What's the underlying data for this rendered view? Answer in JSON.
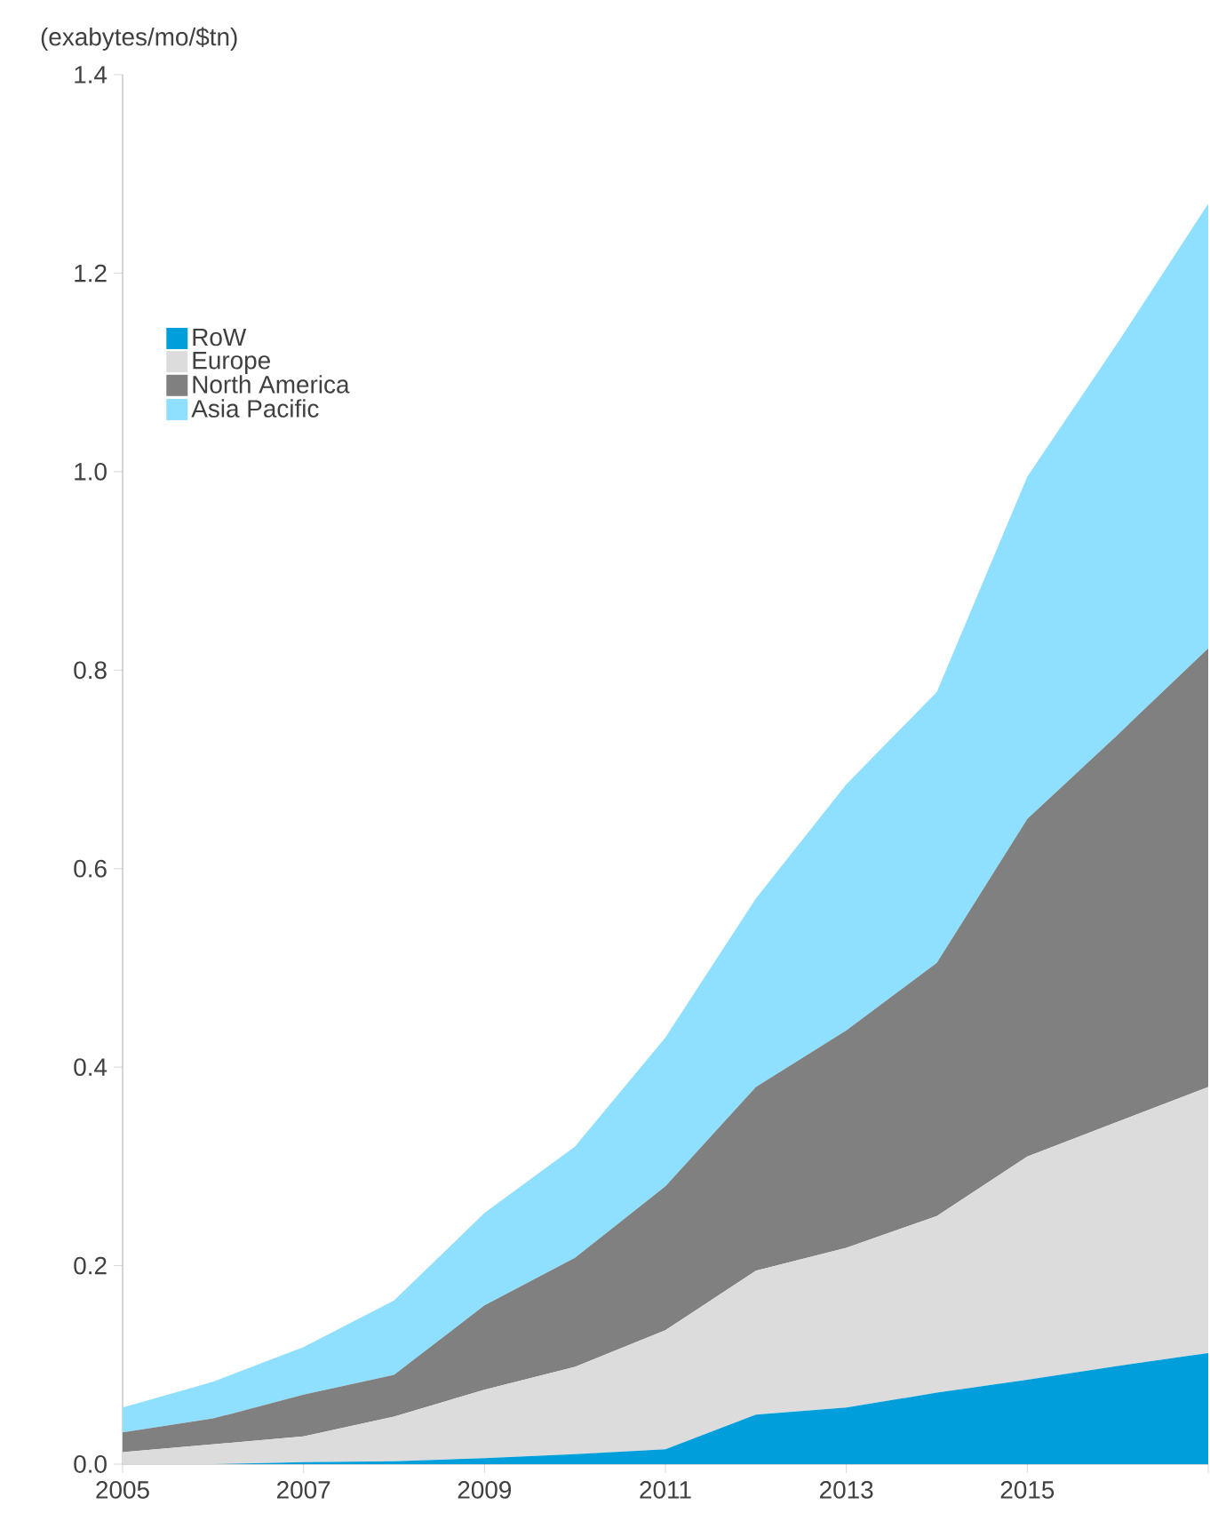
{
  "chart_data": {
    "type": "area",
    "stacked": true,
    "ylabel": "(exabytes/mo/$tn)",
    "x": [
      2005,
      2006,
      2007,
      2008,
      2009,
      2010,
      2011,
      2012,
      2013,
      2014,
      2015,
      2016,
      2017
    ],
    "series": [
      {
        "name": "RoW",
        "color": "#009fdb",
        "values": [
          0,
          0,
          0.002,
          0.003,
          0.006,
          0.01,
          0.015,
          0.05,
          0.057,
          0.072,
          0.085,
          0.099,
          0.112
        ]
      },
      {
        "name": "Europe",
        "color": "#dcdcdc",
        "values": [
          0.012,
          0.02,
          0.026,
          0.045,
          0.069,
          0.088,
          0.12,
          0.145,
          0.161,
          0.178,
          0.225,
          0.246,
          0.268
        ]
      },
      {
        "name": "North America",
        "color": "#808080",
        "values": [
          0.02,
          0.026,
          0.042,
          0.042,
          0.085,
          0.11,
          0.145,
          0.185,
          0.219,
          0.255,
          0.34,
          0.39,
          0.442
        ]
      },
      {
        "name": "Asia Pacific",
        "color": "#8fe0ff",
        "values": [
          0.025,
          0.037,
          0.048,
          0.075,
          0.093,
          0.112,
          0.15,
          0.19,
          0.248,
          0.273,
          0.345,
          0.395,
          0.448
        ]
      }
    ],
    "xlim": [
      2005,
      2017
    ],
    "xticks": [
      2005,
      2007,
      2009,
      2011,
      2013,
      2015,
      {
        "value": 2017,
        "label": null
      }
    ],
    "ylim": [
      0,
      1.4
    ],
    "yticks": [
      {
        "value": 0,
        "label": "0.0"
      },
      {
        "value": 0.2,
        "label": "0.2"
      },
      {
        "value": 0.4,
        "label": "0.4"
      },
      {
        "value": 0.6,
        "label": "0.6"
      },
      {
        "value": 0.8,
        "label": "0.8"
      },
      {
        "value": 1.0,
        "label": "1.0"
      },
      {
        "value": 1.2,
        "label": "1.2"
      },
      {
        "value": 1.4,
        "label": "1.4"
      }
    ],
    "grid": false,
    "legend": "top left"
  }
}
